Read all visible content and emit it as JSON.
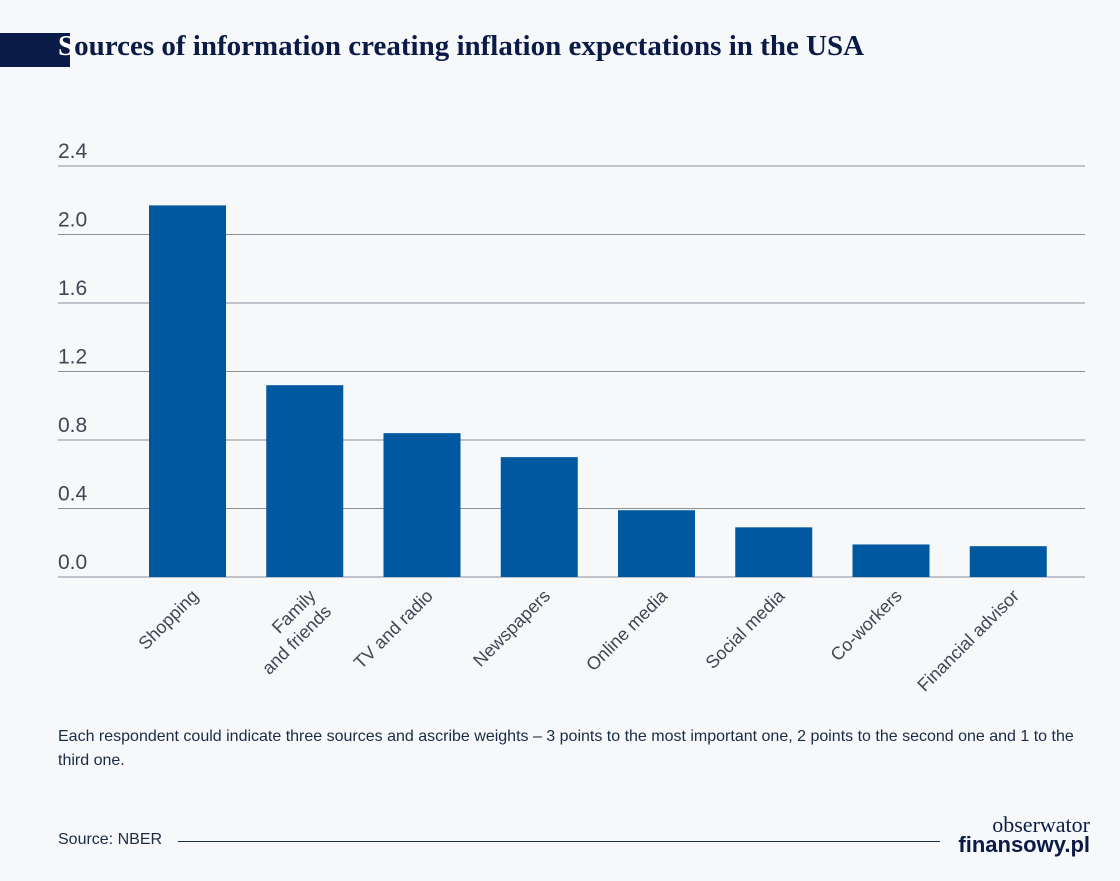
{
  "title": {
    "first_letter": "S",
    "rest": "ources of information creating inflation expectations in the USA"
  },
  "colors": {
    "bar": "#0059a0",
    "grid": "#8a8f99",
    "title": "#0b1b47",
    "background": "#f7f8fa"
  },
  "chart_data": {
    "type": "bar",
    "categories": [
      "Shopping",
      "Family\nand friends",
      "TV and radio",
      "Newspapers",
      "Online media",
      "Social media",
      "Co-workers",
      "Financial advisor"
    ],
    "values": [
      2.17,
      1.12,
      0.84,
      0.7,
      0.39,
      0.29,
      0.19,
      0.18
    ],
    "yticks": [
      "0.0",
      "0.4",
      "0.8",
      "1.2",
      "1.6",
      "2.0",
      "2.4"
    ],
    "ylim": [
      0,
      2.4
    ],
    "grid": true,
    "xlabel": "",
    "ylabel": ""
  },
  "note": "Each respondent could indicate three sources and ascribe weights – 3 points to the most important one, 2 points to the second one and 1 to the third one.",
  "source": "Source: NBER",
  "logo": {
    "line1": "obserwator",
    "line2": "finansowy.pl"
  }
}
